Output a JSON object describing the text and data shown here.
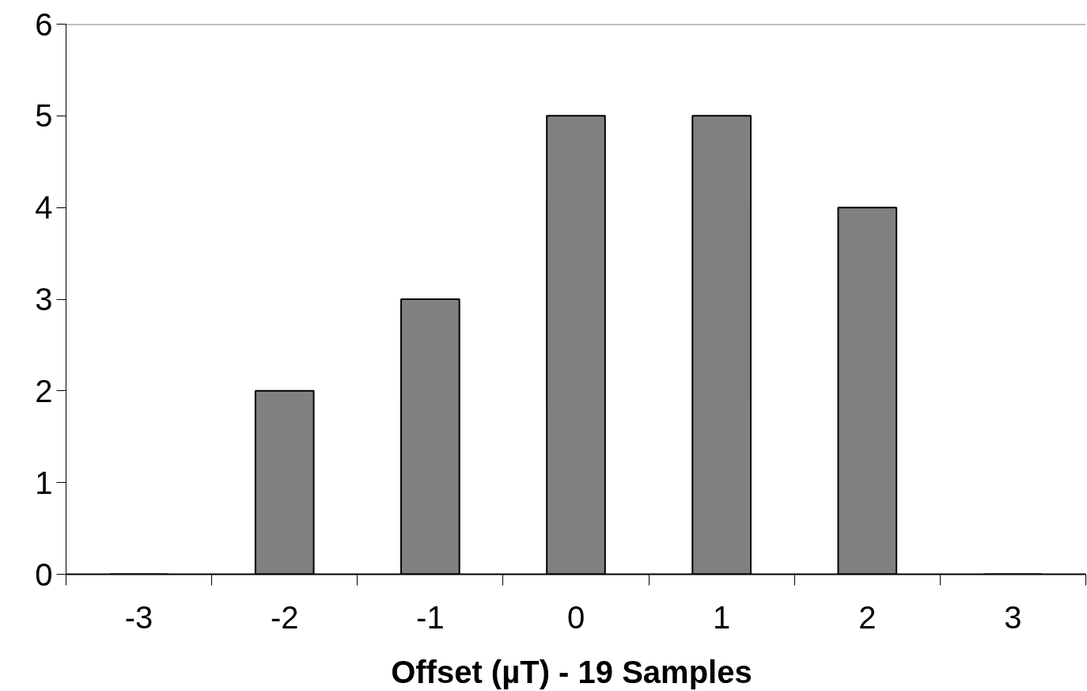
{
  "chart_data": {
    "type": "bar",
    "xlabel": "Offset  (µT) - 19 Samples",
    "categories": [
      "-3",
      "-2",
      "-1",
      "0",
      "1",
      "2",
      "3"
    ],
    "series": [
      {
        "color": "#808080",
        "values": [
          0,
          2,
          3,
          5,
          5,
          4,
          0
        ]
      }
    ],
    "ylim": [
      0,
      6
    ],
    "yticks": [
      0,
      1,
      2,
      3,
      4,
      5,
      6
    ]
  }
}
